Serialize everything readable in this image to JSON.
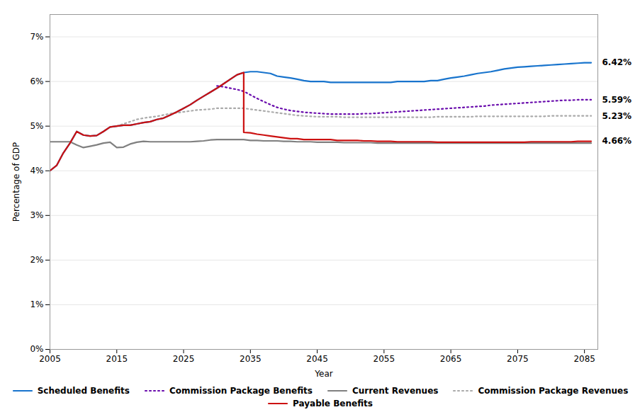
{
  "chart_data": {
    "type": "line",
    "xlabel": "Year",
    "ylabel": "Percentage of GDP",
    "xlim": [
      2005,
      2087
    ],
    "ylim": [
      0.0,
      0.075
    ],
    "xticks": [
      2005,
      2015,
      2025,
      2035,
      2045,
      2055,
      2065,
      2075,
      2085
    ],
    "yticks": [
      {
        "value": 0.0,
        "label": "0%"
      },
      {
        "value": 0.01,
        "label": "1%"
      },
      {
        "value": 0.02,
        "label": "2%"
      },
      {
        "value": 0.03,
        "label": "3%"
      },
      {
        "value": 0.04,
        "label": "4%"
      },
      {
        "value": 0.05,
        "label": "5%"
      },
      {
        "value": 0.06,
        "label": "6%"
      },
      {
        "value": 0.07,
        "label": "7%"
      }
    ],
    "grid": "y",
    "legend": "bottom",
    "annotations": [
      {
        "text": "6.42%",
        "y": 0.0642
      },
      {
        "text": "5.59%",
        "y": 0.0559
      },
      {
        "text": "5.23%",
        "y": 0.0523
      },
      {
        "text": "4.66%",
        "y": 0.0466
      }
    ],
    "series": [
      {
        "name": "Scheduled Benefits",
        "color": "#1874CD",
        "line_style": "solid",
        "x": [
          2005,
          2006,
          2007,
          2008,
          2009,
          2010,
          2011,
          2012,
          2013,
          2014,
          2015,
          2016,
          2017,
          2018,
          2019,
          2020,
          2021,
          2022,
          2023,
          2024,
          2025,
          2026,
          2027,
          2028,
          2029,
          2030,
          2031,
          2032,
          2033,
          2034,
          2035,
          2036,
          2037,
          2038,
          2039,
          2040,
          2041,
          2042,
          2043,
          2044,
          2045,
          2046,
          2047,
          2048,
          2049,
          2050,
          2051,
          2052,
          2053,
          2054,
          2055,
          2056,
          2057,
          2058,
          2059,
          2060,
          2061,
          2062,
          2063,
          2064,
          2065,
          2066,
          2067,
          2068,
          2069,
          2070,
          2071,
          2072,
          2073,
          2074,
          2075,
          2076,
          2077,
          2078,
          2079,
          2080,
          2081,
          2082,
          2083,
          2084,
          2085,
          2086
        ],
        "values": [
          0.04,
          0.0412,
          0.044,
          0.0462,
          0.0488,
          0.048,
          0.0478,
          0.0479,
          0.0488,
          0.0498,
          0.05,
          0.0502,
          0.0502,
          0.0505,
          0.0508,
          0.051,
          0.0515,
          0.0518,
          0.0525,
          0.0532,
          0.054,
          0.0548,
          0.0558,
          0.0567,
          0.0576,
          0.0585,
          0.0595,
          0.0605,
          0.0615,
          0.062,
          0.0622,
          0.0622,
          0.062,
          0.0618,
          0.0612,
          0.061,
          0.0608,
          0.0605,
          0.0602,
          0.06,
          0.06,
          0.06,
          0.0598,
          0.0598,
          0.0598,
          0.0598,
          0.0598,
          0.0598,
          0.0598,
          0.0598,
          0.0598,
          0.0598,
          0.06,
          0.06,
          0.06,
          0.06,
          0.06,
          0.0602,
          0.0602,
          0.0605,
          0.0608,
          0.061,
          0.0612,
          0.0615,
          0.0618,
          0.062,
          0.0622,
          0.0625,
          0.0628,
          0.063,
          0.0632,
          0.0633,
          0.0634,
          0.0635,
          0.0636,
          0.0637,
          0.0638,
          0.0639,
          0.064,
          0.0641,
          0.0642,
          0.0642
        ]
      },
      {
        "name": "Commission Package Benefits",
        "color": "#6A0DAD",
        "line_style": "dotted",
        "x": [
          2030,
          2031,
          2032,
          2033,
          2034,
          2035,
          2036,
          2037,
          2038,
          2039,
          2040,
          2041,
          2042,
          2043,
          2044,
          2045,
          2046,
          2047,
          2048,
          2049,
          2050,
          2051,
          2052,
          2053,
          2054,
          2055,
          2056,
          2057,
          2058,
          2059,
          2060,
          2061,
          2062,
          2063,
          2064,
          2065,
          2066,
          2067,
          2068,
          2069,
          2070,
          2071,
          2072,
          2073,
          2074,
          2075,
          2076,
          2077,
          2078,
          2079,
          2080,
          2081,
          2082,
          2083,
          2084,
          2085,
          2086
        ],
        "values": [
          0.059,
          0.0588,
          0.0585,
          0.0582,
          0.0578,
          0.057,
          0.0562,
          0.0555,
          0.0548,
          0.0542,
          0.0538,
          0.0535,
          0.0533,
          0.0531,
          0.053,
          0.0529,
          0.0528,
          0.0527,
          0.0527,
          0.0527,
          0.0527,
          0.0527,
          0.0528,
          0.0528,
          0.0529,
          0.053,
          0.0531,
          0.0532,
          0.0533,
          0.0534,
          0.0535,
          0.0536,
          0.0537,
          0.0538,
          0.0539,
          0.054,
          0.0541,
          0.0542,
          0.0543,
          0.0544,
          0.0545,
          0.0547,
          0.0548,
          0.0549,
          0.055,
          0.0551,
          0.0552,
          0.0553,
          0.0554,
          0.0555,
          0.0556,
          0.0557,
          0.0558,
          0.0558,
          0.0559,
          0.0559,
          0.0559
        ]
      },
      {
        "name": "Current Revenues",
        "color": "#808080",
        "line_style": "solid",
        "x": [
          2005,
          2006,
          2007,
          2008,
          2009,
          2010,
          2011,
          2012,
          2013,
          2014,
          2015,
          2016,
          2017,
          2018,
          2019,
          2020,
          2021,
          2022,
          2023,
          2024,
          2025,
          2026,
          2027,
          2028,
          2029,
          2030,
          2031,
          2032,
          2033,
          2034,
          2035,
          2036,
          2037,
          2038,
          2039,
          2040,
          2041,
          2042,
          2043,
          2044,
          2045,
          2046,
          2047,
          2048,
          2049,
          2050,
          2051,
          2052,
          2053,
          2054,
          2055,
          2056,
          2057,
          2058,
          2059,
          2060,
          2061,
          2062,
          2063,
          2064,
          2065,
          2066,
          2067,
          2068,
          2069,
          2070,
          2071,
          2072,
          2073,
          2074,
          2075,
          2076,
          2077,
          2078,
          2079,
          2080,
          2081,
          2082,
          2083,
          2084,
          2085,
          2086
        ],
        "values": [
          0.0465,
          0.0465,
          0.0465,
          0.0465,
          0.0458,
          0.0452,
          0.0455,
          0.0458,
          0.0462,
          0.0464,
          0.0452,
          0.0453,
          0.046,
          0.0464,
          0.0466,
          0.0465,
          0.0465,
          0.0465,
          0.0465,
          0.0465,
          0.0465,
          0.0465,
          0.0466,
          0.0467,
          0.0469,
          0.047,
          0.047,
          0.047,
          0.047,
          0.047,
          0.0468,
          0.0468,
          0.0467,
          0.0467,
          0.0467,
          0.0466,
          0.0466,
          0.0465,
          0.0465,
          0.0465,
          0.0464,
          0.0464,
          0.0464,
          0.0464,
          0.0463,
          0.0463,
          0.0463,
          0.0463,
          0.0463,
          0.0462,
          0.0462,
          0.0462,
          0.0462,
          0.0462,
          0.0462,
          0.0462,
          0.0462,
          0.0462,
          0.0462,
          0.0462,
          0.0462,
          0.0462,
          0.0462,
          0.0462,
          0.0462,
          0.0462,
          0.0462,
          0.0462,
          0.0462,
          0.0462,
          0.0462,
          0.0462,
          0.0462,
          0.0462,
          0.0462,
          0.0462,
          0.0462,
          0.0462,
          0.0462,
          0.0462,
          0.0462,
          0.0462
        ]
      },
      {
        "name": "Commission Package Revenues",
        "color": "#AAAAAA",
        "line_style": "dotted",
        "x": [
          2015,
          2016,
          2017,
          2018,
          2019,
          2020,
          2021,
          2022,
          2023,
          2024,
          2025,
          2026,
          2027,
          2028,
          2029,
          2030,
          2031,
          2032,
          2033,
          2034,
          2035,
          2036,
          2037,
          2038,
          2039,
          2040,
          2041,
          2042,
          2043,
          2044,
          2045,
          2046,
          2047,
          2048,
          2049,
          2050,
          2051,
          2052,
          2053,
          2054,
          2055,
          2056,
          2057,
          2058,
          2059,
          2060,
          2061,
          2062,
          2063,
          2064,
          2065,
          2066,
          2067,
          2068,
          2069,
          2070,
          2071,
          2072,
          2073,
          2074,
          2075,
          2076,
          2077,
          2078,
          2079,
          2080,
          2081,
          2082,
          2083,
          2084,
          2085,
          2086
        ],
        "values": [
          0.05,
          0.0505,
          0.051,
          0.0515,
          0.0518,
          0.052,
          0.0522,
          0.0525,
          0.0528,
          0.053,
          0.0532,
          0.0534,
          0.0536,
          0.0537,
          0.0538,
          0.054,
          0.054,
          0.054,
          0.054,
          0.054,
          0.0538,
          0.0536,
          0.0534,
          0.0532,
          0.053,
          0.0528,
          0.0526,
          0.0524,
          0.0523,
          0.0522,
          0.0521,
          0.0521,
          0.0521,
          0.0521,
          0.052,
          0.052,
          0.052,
          0.052,
          0.052,
          0.052,
          0.052,
          0.052,
          0.052,
          0.052,
          0.052,
          0.052,
          0.052,
          0.052,
          0.0521,
          0.0521,
          0.0521,
          0.0521,
          0.0521,
          0.0521,
          0.0522,
          0.0522,
          0.0522,
          0.0522,
          0.0522,
          0.0522,
          0.0522,
          0.0522,
          0.0522,
          0.0522,
          0.0522,
          0.0523,
          0.0523,
          0.0523,
          0.0523,
          0.0523,
          0.0523,
          0.0523
        ]
      },
      {
        "name": "Payable Benefits",
        "color": "#CC1111",
        "line_style": "solid",
        "x": [
          2005,
          2006,
          2007,
          2008,
          2009,
          2010,
          2011,
          2012,
          2013,
          2014,
          2015,
          2016,
          2017,
          2018,
          2019,
          2020,
          2021,
          2022,
          2023,
          2024,
          2025,
          2026,
          2027,
          2028,
          2029,
          2030,
          2031,
          2032,
          2033,
          2034,
          2034,
          2035,
          2036,
          2037,
          2038,
          2039,
          2040,
          2041,
          2042,
          2043,
          2044,
          2045,
          2046,
          2047,
          2048,
          2049,
          2050,
          2051,
          2052,
          2053,
          2054,
          2055,
          2056,
          2057,
          2058,
          2059,
          2060,
          2061,
          2062,
          2063,
          2064,
          2065,
          2066,
          2067,
          2068,
          2069,
          2070,
          2071,
          2072,
          2073,
          2074,
          2075,
          2076,
          2077,
          2078,
          2079,
          2080,
          2081,
          2082,
          2083,
          2084,
          2085,
          2086
        ],
        "values": [
          0.04,
          0.0412,
          0.044,
          0.0462,
          0.0488,
          0.048,
          0.0478,
          0.0479,
          0.0488,
          0.0498,
          0.05,
          0.0502,
          0.0502,
          0.0505,
          0.0508,
          0.051,
          0.0515,
          0.0518,
          0.0525,
          0.0532,
          0.054,
          0.0548,
          0.0558,
          0.0567,
          0.0576,
          0.0585,
          0.0595,
          0.0605,
          0.0615,
          0.062,
          0.0486,
          0.0485,
          0.0482,
          0.048,
          0.0478,
          0.0476,
          0.0474,
          0.0472,
          0.0472,
          0.047,
          0.047,
          0.047,
          0.047,
          0.047,
          0.0468,
          0.0468,
          0.0468,
          0.0468,
          0.0467,
          0.0467,
          0.0466,
          0.0466,
          0.0466,
          0.0465,
          0.0465,
          0.0465,
          0.0465,
          0.0465,
          0.0465,
          0.0464,
          0.0464,
          0.0464,
          0.0464,
          0.0464,
          0.0464,
          0.0464,
          0.0464,
          0.0464,
          0.0464,
          0.0464,
          0.0464,
          0.0464,
          0.0464,
          0.0465,
          0.0465,
          0.0465,
          0.0465,
          0.0465,
          0.0465,
          0.0465,
          0.0466,
          0.0466,
          0.0466
        ]
      }
    ]
  }
}
